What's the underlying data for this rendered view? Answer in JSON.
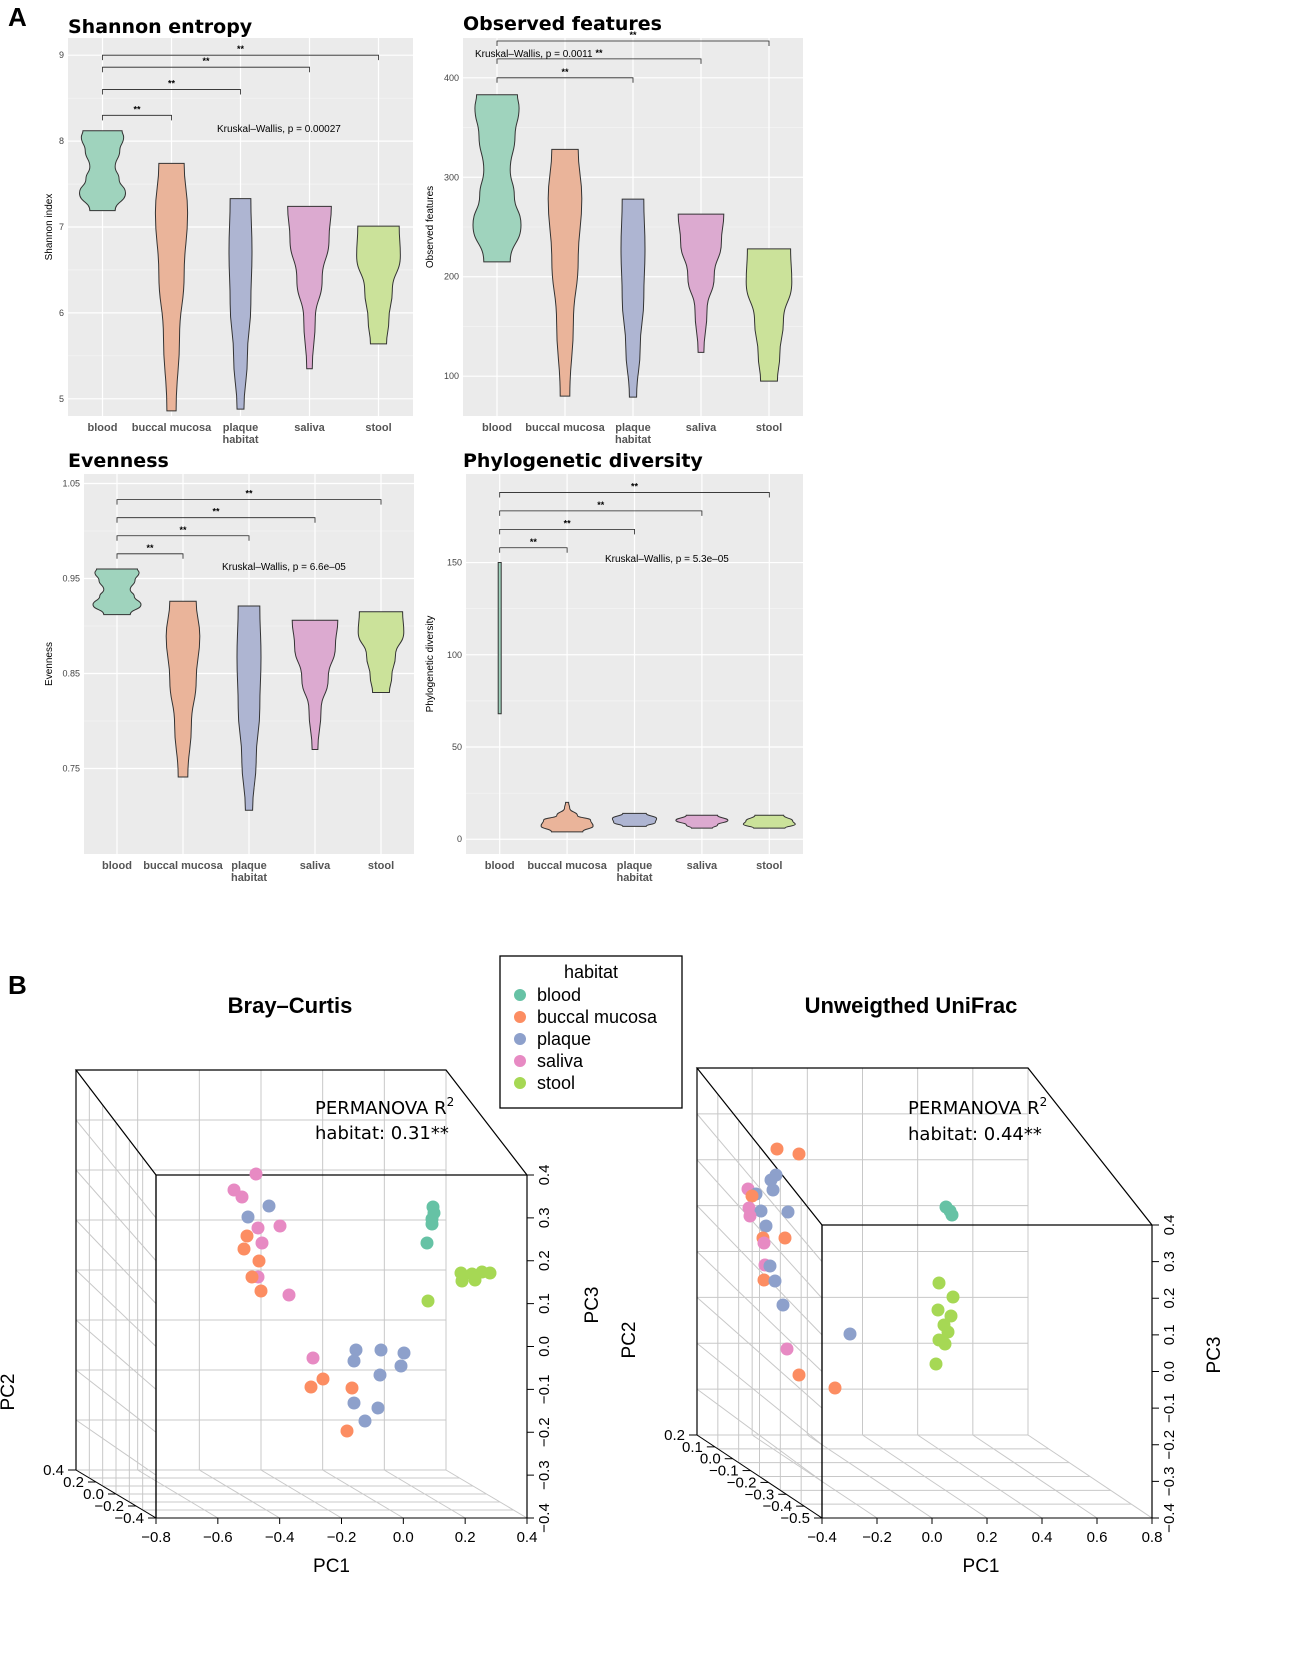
{
  "panels": {
    "a": "A",
    "b": "B"
  },
  "colors": {
    "blood": "#66c2a5",
    "buccal": "#fc8d62",
    "plaque": "#8da0cb",
    "saliva": "#e78ac3",
    "stool": "#a6d854",
    "violin_blood": "#9fd3bd",
    "violin_buccal": "#eab49a",
    "violin_plaque": "#aeb5d2",
    "violin_saliva": "#dcaad0",
    "violin_stool": "#cbe29a",
    "plot_bg": "#ebebeb"
  },
  "chart_data": [
    {
      "type": "violin",
      "title": "Shannon entropy",
      "ylabel": "Shannon index",
      "categories": [
        "blood",
        "buccal mucosa",
        "plaque\nhabitat",
        "saliva",
        "stool"
      ],
      "yticks": [
        5,
        6,
        7,
        8,
        9
      ],
      "ylim": [
        4.8,
        9.2
      ],
      "violins": [
        {
          "group": "blood",
          "min": 7.19,
          "max": 8.12
        },
        {
          "group": "buccal mucosa",
          "min": 4.86,
          "max": 7.74
        },
        {
          "group": "plaque",
          "min": 4.88,
          "max": 7.33
        },
        {
          "group": "saliva",
          "min": 5.35,
          "max": 7.24
        },
        {
          "group": "stool",
          "min": 5.64,
          "max": 7.01
        }
      ],
      "annotation": "Kruskal–Wallis, p = 0.00027",
      "annotation_y": 8.14,
      "brackets": [
        {
          "from": 0,
          "to": 1,
          "y": 8.3,
          "label": "**"
        },
        {
          "from": 0,
          "to": 2,
          "y": 8.6,
          "label": "**"
        },
        {
          "from": 0,
          "to": 3,
          "y": 8.86,
          "label": "**"
        },
        {
          "from": 0,
          "to": 4,
          "y": 9.0,
          "label": "**"
        }
      ]
    },
    {
      "type": "violin",
      "title": "Observed features",
      "ylabel": "Observed features",
      "categories": [
        "blood",
        "buccal mucosa",
        "plaque\nhabitat",
        "saliva",
        "stool"
      ],
      "yticks": [
        100,
        200,
        300,
        400
      ],
      "ylim": [
        60,
        440
      ],
      "violins": [
        {
          "group": "blood",
          "min": 215,
          "max": 383
        },
        {
          "group": "buccal mucosa",
          "min": 80,
          "max": 328
        },
        {
          "group": "plaque",
          "min": 79,
          "max": 278
        },
        {
          "group": "saliva",
          "min": 124,
          "max": 263
        },
        {
          "group": "stool",
          "min": 95,
          "max": 228
        }
      ],
      "annotation": "Kruskal–Wallis, p = 0.0011",
      "annotation_y": 424,
      "brackets": [
        {
          "from": 0,
          "to": 2,
          "y": 400,
          "label": "**"
        },
        {
          "from": 0,
          "to": 3,
          "y": 419,
          "label": "**"
        },
        {
          "from": 0,
          "to": 4,
          "y": 437,
          "label": "**"
        }
      ]
    },
    {
      "type": "violin",
      "title": "Evenness",
      "ylabel": "Evenness",
      "categories": [
        "blood",
        "buccal mucosa",
        "plaque\nhabitat",
        "saliva",
        "stool"
      ],
      "yticks": [
        0.75,
        0.85,
        0.95,
        1.05
      ],
      "ytick_labels": [
        "0.75",
        "0.85",
        "0.95",
        "1.05"
      ],
      "ylim": [
        0.66,
        1.06
      ],
      "violins": [
        {
          "group": "blood",
          "min": 0.912,
          "max": 0.96
        },
        {
          "group": "buccal mucosa",
          "min": 0.741,
          "max": 0.926
        },
        {
          "group": "plaque",
          "min": 0.706,
          "max": 0.921
        },
        {
          "group": "saliva",
          "min": 0.77,
          "max": 0.906
        },
        {
          "group": "stool",
          "min": 0.83,
          "max": 0.915
        }
      ],
      "annotation": "Kruskal–Wallis, p = 6.6e–05",
      "annotation_y": 0.962,
      "brackets": [
        {
          "from": 0,
          "to": 1,
          "y": 0.976,
          "label": "**"
        },
        {
          "from": 0,
          "to": 2,
          "y": 0.995,
          "label": "**"
        },
        {
          "from": 0,
          "to": 3,
          "y": 1.014,
          "label": "**"
        },
        {
          "from": 0,
          "to": 4,
          "y": 1.033,
          "label": "**"
        }
      ]
    },
    {
      "type": "violin",
      "title": "Phylogenetic diversity",
      "ylabel": "Phylogenetic diversity",
      "categories": [
        "blood",
        "buccal mucosa",
        "plaque\nhabitat",
        "saliva",
        "stool"
      ],
      "yticks": [
        0,
        50,
        100,
        150
      ],
      "ylim": [
        -8,
        198
      ],
      "violins": [
        {
          "group": "blood",
          "min": 68,
          "max": 150
        },
        {
          "group": "buccal mucosa",
          "min": 4,
          "max": 20
        },
        {
          "group": "plaque",
          "min": 7,
          "max": 14
        },
        {
          "group": "saliva",
          "min": 6,
          "max": 13
        },
        {
          "group": "stool",
          "min": 6,
          "max": 13
        }
      ],
      "annotation": "Kruskal–Wallis, p = 5.3e–05",
      "annotation_y": 152,
      "brackets": [
        {
          "from": 0,
          "to": 1,
          "y": 158,
          "label": "**"
        },
        {
          "from": 0,
          "to": 2,
          "y": 168,
          "label": "**"
        },
        {
          "from": 0,
          "to": 3,
          "y": 178,
          "label": "**"
        },
        {
          "from": 0,
          "to": 4,
          "y": 188,
          "label": "**"
        }
      ]
    },
    {
      "type": "scatter3d",
      "title": "Bray–Curtis",
      "permanova_title": "PERMANOVA R",
      "permanova_sup": "2",
      "permanova_value": "habitat: 0.31**",
      "xlabel": "PC1",
      "ylabel": "PC2",
      "zlabel": "PC3",
      "xticks": [
        "−0.8",
        "−0.6",
        "−0.4",
        "−0.2",
        "0.0",
        "0.2",
        "0.4"
      ],
      "yticks": [
        "−0.4",
        "−0.2",
        "0.0",
        "0.2",
        "0.4"
      ],
      "zticks": [
        "−0.4",
        "−0.3",
        "−0.2",
        "−0.1",
        "0.0",
        "0.1",
        "0.2",
        "0.3",
        "0.4"
      ]
    },
    {
      "type": "scatter3d",
      "title": "Unweigthed UniFrac",
      "permanova_title": "PERMANOVA R",
      "permanova_sup": "2",
      "permanova_value": "habitat: 0.44**",
      "xlabel": "PC1",
      "ylabel": "PC2",
      "zlabel": "PC3",
      "xticks": [
        "−0.4",
        "−0.2",
        "0.0",
        "0.2",
        "0.4",
        "0.6",
        "0.8"
      ],
      "yticks": [
        "−0.5",
        "−0.4",
        "−0.3",
        "−0.2",
        "−0.1",
        "0.0",
        "0.1",
        "0.2"
      ],
      "zticks": [
        "−0.4",
        "−0.3",
        "−0.2",
        "−0.1",
        "0.0",
        "0.1",
        "0.2",
        "0.3",
        "0.4"
      ]
    }
  ],
  "legend": {
    "title": "habitat",
    "items": [
      {
        "label": "blood",
        "color": "#66c2a5"
      },
      {
        "label": "buccal mucosa",
        "color": "#fc8d62"
      },
      {
        "label": "plaque",
        "color": "#8da0cb"
      },
      {
        "label": "saliva",
        "color": "#e78ac3"
      },
      {
        "label": "stool",
        "color": "#a6d854"
      }
    ]
  }
}
